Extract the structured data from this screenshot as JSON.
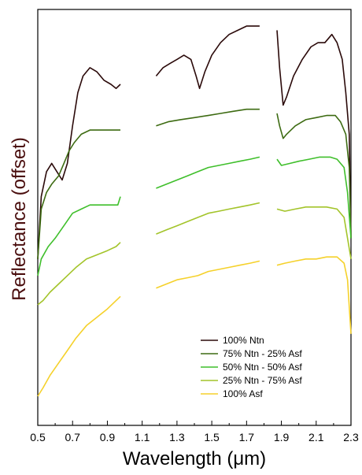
{
  "chart_data": {
    "type": "line",
    "title": "",
    "xlabel": "Wavelength (μm)",
    "ylabel": "Reflectance (offset)",
    "xlim": [
      0.5,
      2.3
    ],
    "ylim": [
      0,
      1
    ],
    "x_ticks": [
      "0.5",
      "0.7",
      "0.9",
      "1.1",
      "1.3",
      "1.5",
      "1.7",
      "1.9",
      "2.1",
      "2.3"
    ],
    "y_ticks_shown": false,
    "grid": false,
    "legend_position": "bottom-right",
    "gaps": [
      [
        0.975,
        1.175
      ],
      [
        1.775,
        1.875
      ]
    ],
    "series": [
      {
        "name": "100% Ntn",
        "color": "#2b0a0a",
        "points": [
          [
            0.5,
            0.4
          ],
          [
            0.52,
            0.55
          ],
          [
            0.55,
            0.61
          ],
          [
            0.58,
            0.63
          ],
          [
            0.61,
            0.61
          ],
          [
            0.64,
            0.59
          ],
          [
            0.67,
            0.63
          ],
          [
            0.7,
            0.72
          ],
          [
            0.73,
            0.8
          ],
          [
            0.76,
            0.84
          ],
          [
            0.8,
            0.86
          ],
          [
            0.84,
            0.85
          ],
          [
            0.88,
            0.83
          ],
          [
            0.92,
            0.82
          ],
          [
            0.95,
            0.81
          ],
          [
            0.975,
            0.82
          ],
          [
            1.18,
            0.84
          ],
          [
            1.22,
            0.86
          ],
          [
            1.26,
            0.87
          ],
          [
            1.3,
            0.88
          ],
          [
            1.34,
            0.89
          ],
          [
            1.38,
            0.88
          ],
          [
            1.41,
            0.84
          ],
          [
            1.43,
            0.81
          ],
          [
            1.46,
            0.85
          ],
          [
            1.5,
            0.89
          ],
          [
            1.55,
            0.92
          ],
          [
            1.6,
            0.94
          ],
          [
            1.65,
            0.95
          ],
          [
            1.7,
            0.96
          ],
          [
            1.74,
            0.96
          ],
          [
            1.775,
            0.96
          ],
          [
            1.875,
            0.95
          ],
          [
            1.89,
            0.86
          ],
          [
            1.91,
            0.77
          ],
          [
            1.93,
            0.79
          ],
          [
            1.97,
            0.84
          ],
          [
            2.02,
            0.88
          ],
          [
            2.07,
            0.91
          ],
          [
            2.11,
            0.92
          ],
          [
            2.15,
            0.92
          ],
          [
            2.19,
            0.94
          ],
          [
            2.22,
            0.92
          ],
          [
            2.25,
            0.88
          ],
          [
            2.27,
            0.8
          ],
          [
            2.29,
            0.7
          ],
          [
            2.3,
            0.45
          ]
        ]
      },
      {
        "name": "75% Ntn - 25% Asf",
        "color": "#3d6b12",
        "points": [
          [
            0.5,
            0.4
          ],
          [
            0.52,
            0.52
          ],
          [
            0.55,
            0.56
          ],
          [
            0.58,
            0.58
          ],
          [
            0.62,
            0.6
          ],
          [
            0.65,
            0.63
          ],
          [
            0.68,
            0.66
          ],
          [
            0.71,
            0.68
          ],
          [
            0.75,
            0.7
          ],
          [
            0.8,
            0.71
          ],
          [
            0.85,
            0.71
          ],
          [
            0.9,
            0.71
          ],
          [
            0.975,
            0.71
          ],
          [
            1.18,
            0.72
          ],
          [
            1.25,
            0.73
          ],
          [
            1.32,
            0.735
          ],
          [
            1.4,
            0.74
          ],
          [
            1.48,
            0.745
          ],
          [
            1.55,
            0.75
          ],
          [
            1.62,
            0.755
          ],
          [
            1.7,
            0.76
          ],
          [
            1.775,
            0.76
          ],
          [
            1.875,
            0.75
          ],
          [
            1.89,
            0.72
          ],
          [
            1.91,
            0.69
          ],
          [
            1.93,
            0.7
          ],
          [
            1.98,
            0.72
          ],
          [
            2.04,
            0.735
          ],
          [
            2.1,
            0.74
          ],
          [
            2.16,
            0.745
          ],
          [
            2.21,
            0.745
          ],
          [
            2.24,
            0.73
          ],
          [
            2.27,
            0.7
          ],
          [
            2.29,
            0.62
          ],
          [
            2.3,
            0.45
          ]
        ]
      },
      {
        "name": "50% Ntn - 50% Asf",
        "color": "#3fbf2b",
        "points": [
          [
            0.5,
            0.36
          ],
          [
            0.52,
            0.4
          ],
          [
            0.56,
            0.43
          ],
          [
            0.6,
            0.45
          ],
          [
            0.65,
            0.48
          ],
          [
            0.7,
            0.51
          ],
          [
            0.75,
            0.52
          ],
          [
            0.8,
            0.53
          ],
          [
            0.86,
            0.53
          ],
          [
            0.92,
            0.53
          ],
          [
            0.96,
            0.53
          ],
          [
            0.975,
            0.55
          ],
          [
            1.18,
            0.57
          ],
          [
            1.24,
            0.58
          ],
          [
            1.3,
            0.59
          ],
          [
            1.36,
            0.6
          ],
          [
            1.42,
            0.61
          ],
          [
            1.48,
            0.62
          ],
          [
            1.54,
            0.625
          ],
          [
            1.6,
            0.63
          ],
          [
            1.66,
            0.635
          ],
          [
            1.72,
            0.64
          ],
          [
            1.775,
            0.645
          ],
          [
            1.875,
            0.64
          ],
          [
            1.9,
            0.625
          ],
          [
            1.95,
            0.63
          ],
          [
            2.0,
            0.635
          ],
          [
            2.06,
            0.64
          ],
          [
            2.12,
            0.645
          ],
          [
            2.18,
            0.645
          ],
          [
            2.22,
            0.64
          ],
          [
            2.26,
            0.62
          ],
          [
            2.28,
            0.56
          ],
          [
            2.3,
            0.45
          ]
        ]
      },
      {
        "name": "25% Ntn - 75% Asf",
        "color": "#a3c42a",
        "points": [
          [
            0.5,
            0.29
          ],
          [
            0.53,
            0.3
          ],
          [
            0.57,
            0.32
          ],
          [
            0.62,
            0.34
          ],
          [
            0.67,
            0.36
          ],
          [
            0.72,
            0.38
          ],
          [
            0.78,
            0.4
          ],
          [
            0.84,
            0.41
          ],
          [
            0.9,
            0.42
          ],
          [
            0.95,
            0.43
          ],
          [
            0.975,
            0.44
          ],
          [
            1.18,
            0.46
          ],
          [
            1.24,
            0.47
          ],
          [
            1.3,
            0.48
          ],
          [
            1.36,
            0.49
          ],
          [
            1.42,
            0.5
          ],
          [
            1.48,
            0.51
          ],
          [
            1.54,
            0.515
          ],
          [
            1.6,
            0.52
          ],
          [
            1.66,
            0.525
          ],
          [
            1.72,
            0.53
          ],
          [
            1.775,
            0.535
          ],
          [
            1.875,
            0.52
          ],
          [
            1.92,
            0.515
          ],
          [
            1.98,
            0.52
          ],
          [
            2.04,
            0.525
          ],
          [
            2.1,
            0.525
          ],
          [
            2.16,
            0.525
          ],
          [
            2.22,
            0.52
          ],
          [
            2.26,
            0.5
          ],
          [
            2.28,
            0.45
          ],
          [
            2.3,
            0.4
          ]
        ]
      },
      {
        "name": "100% Asf",
        "color": "#f5d12b",
        "points": [
          [
            0.5,
            0.07
          ],
          [
            0.53,
            0.09
          ],
          [
            0.57,
            0.12
          ],
          [
            0.62,
            0.15
          ],
          [
            0.67,
            0.18
          ],
          [
            0.72,
            0.21
          ],
          [
            0.78,
            0.24
          ],
          [
            0.84,
            0.26
          ],
          [
            0.9,
            0.28
          ],
          [
            0.95,
            0.3
          ],
          [
            0.975,
            0.31
          ],
          [
            1.18,
            0.33
          ],
          [
            1.24,
            0.34
          ],
          [
            1.3,
            0.35
          ],
          [
            1.36,
            0.355
          ],
          [
            1.42,
            0.36
          ],
          [
            1.48,
            0.37
          ],
          [
            1.54,
            0.375
          ],
          [
            1.6,
            0.38
          ],
          [
            1.66,
            0.385
          ],
          [
            1.72,
            0.39
          ],
          [
            1.775,
            0.395
          ],
          [
            1.875,
            0.385
          ],
          [
            1.92,
            0.39
          ],
          [
            1.98,
            0.395
          ],
          [
            2.04,
            0.4
          ],
          [
            2.1,
            0.4
          ],
          [
            2.16,
            0.405
          ],
          [
            2.22,
            0.405
          ],
          [
            2.26,
            0.39
          ],
          [
            2.28,
            0.35
          ],
          [
            2.3,
            0.22
          ]
        ]
      }
    ]
  }
}
